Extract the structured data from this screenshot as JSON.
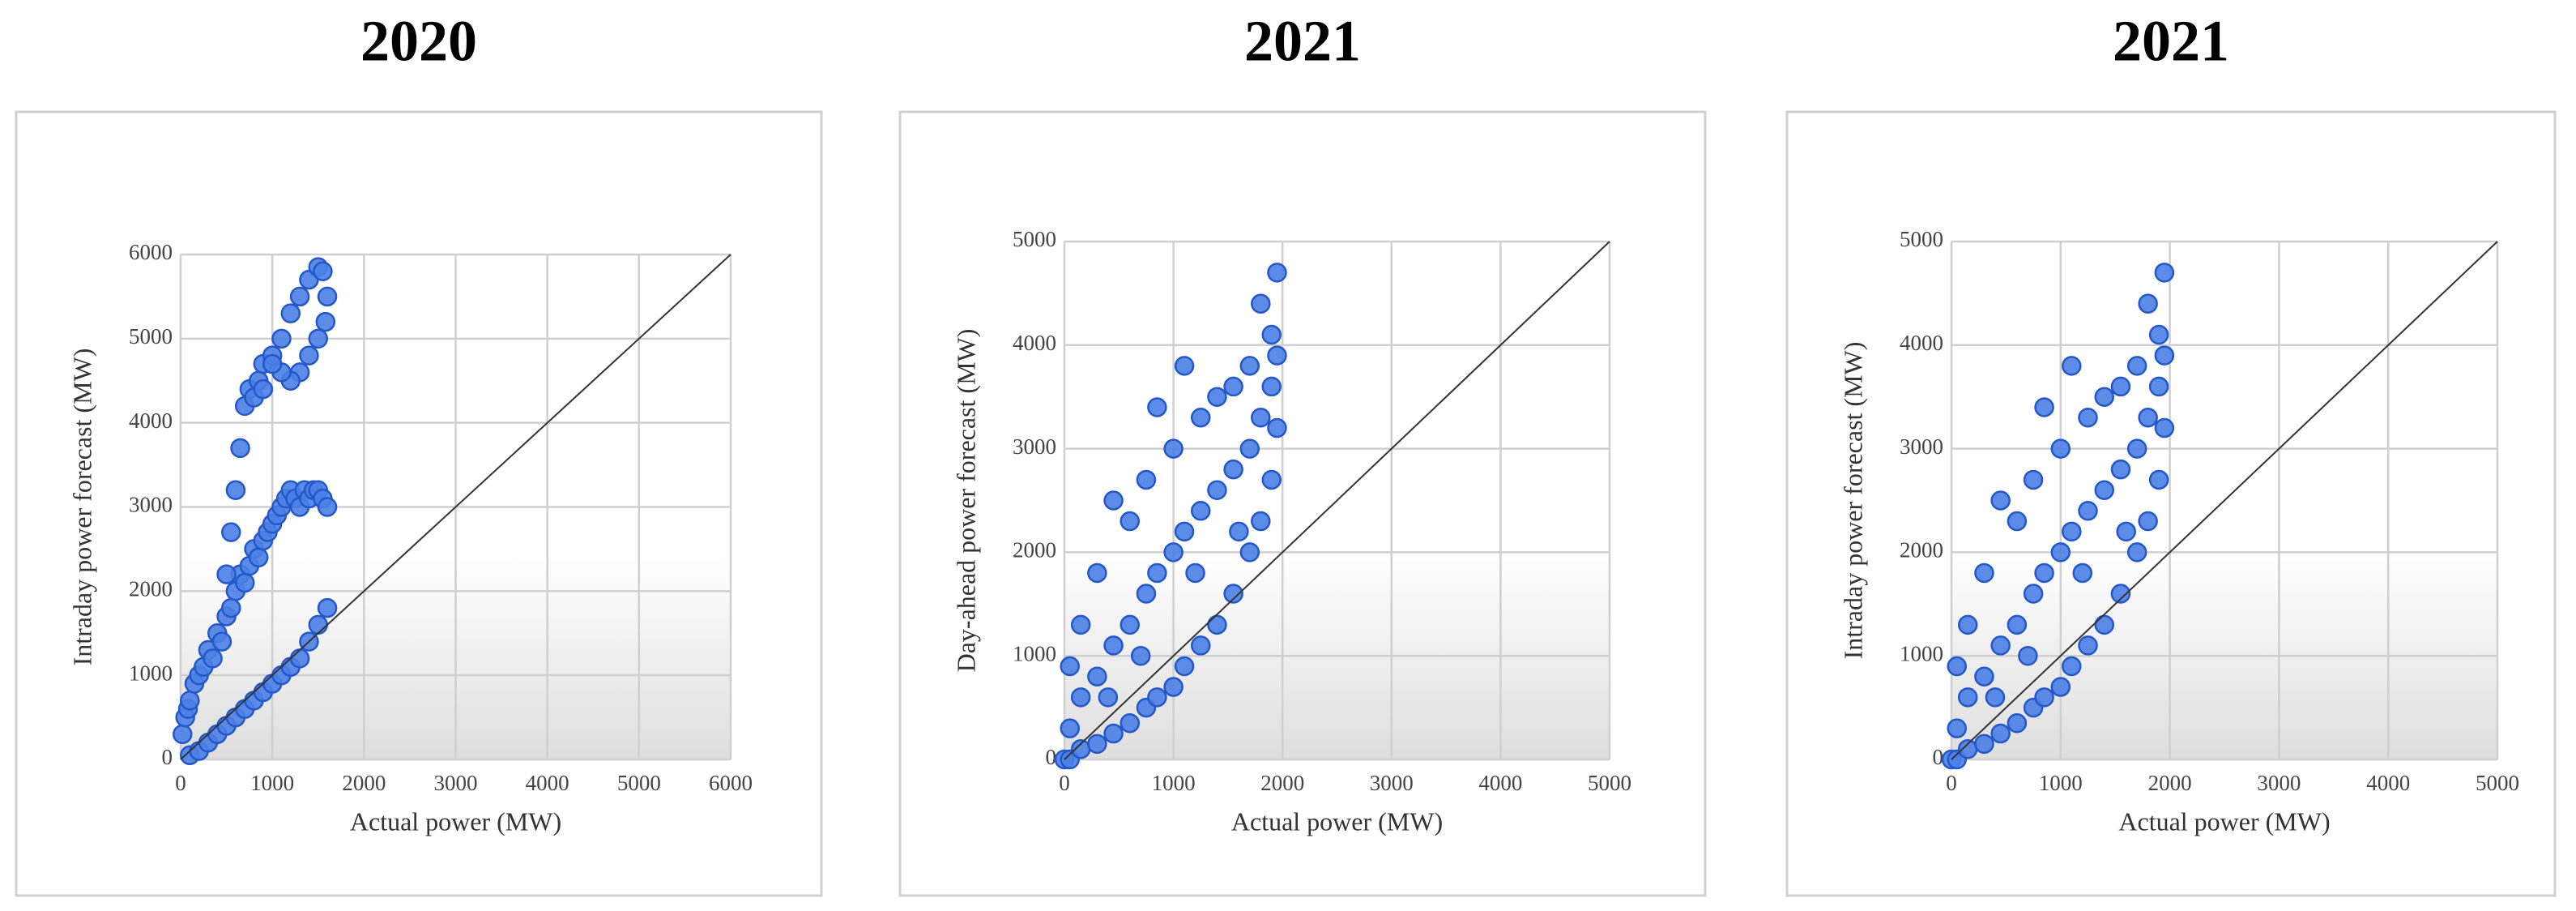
{
  "chart_data": [
    {
      "type": "scatter",
      "title": "2020",
      "xlabel": "Actual power (MW)",
      "ylabel": "Intraday power forecast (MW)",
      "xlim": [
        0,
        6000
      ],
      "ylim": [
        0,
        6000
      ],
      "xticks": [
        0,
        1000,
        2000,
        3000,
        4000,
        5000,
        6000
      ],
      "yticks": [
        0,
        1000,
        2000,
        3000,
        4000,
        5000,
        6000
      ],
      "grid": true,
      "series": [
        {
          "color": "#4a7fe6",
          "x": [
            20,
            50,
            80,
            100,
            150,
            200,
            250,
            300,
            350,
            400,
            450,
            500,
            550,
            600,
            650,
            700,
            750,
            800,
            850,
            900,
            950,
            1000,
            1050,
            1100,
            1150,
            1200,
            1250,
            1300,
            1350,
            1400,
            1450,
            1500,
            1550,
            1600,
            100,
            200,
            300,
            400,
            500,
            600,
            700,
            800,
            900,
            1000,
            1100,
            1200,
            1300,
            1400,
            1500,
            1600,
            500,
            550,
            600,
            650,
            700,
            750,
            800,
            850,
            900,
            1000,
            1100,
            1200,
            1300,
            1400,
            1500,
            1550,
            1600,
            1580,
            1500,
            1400,
            1300,
            1200,
            1100,
            1000,
            900
          ],
          "y": [
            300,
            500,
            600,
            700,
            900,
            1000,
            1100,
            1300,
            1200,
            1500,
            1400,
            1700,
            1800,
            2000,
            2200,
            2100,
            2300,
            2500,
            2400,
            2600,
            2700,
            2800,
            2900,
            3000,
            3100,
            3200,
            3100,
            3000,
            3200,
            3100,
            3200,
            3200,
            3100,
            3000,
            50,
            100,
            200,
            300,
            400,
            500,
            600,
            700,
            800,
            900,
            1000,
            1100,
            1200,
            1400,
            1600,
            1800,
            2200,
            2700,
            3200,
            3700,
            4200,
            4400,
            4300,
            4500,
            4700,
            4800,
            5000,
            5300,
            5500,
            5700,
            5850,
            5800,
            5500,
            5200,
            5000,
            4800,
            4600,
            4500,
            4600,
            4700,
            4400
          ]
        }
      ],
      "reference_line": {
        "x": [
          0,
          6000
        ],
        "y": [
          0,
          6000
        ]
      }
    },
    {
      "type": "scatter",
      "title": "2021",
      "xlabel": "Actual power (MW)",
      "ylabel": "Day-ahead power forecast (MW)",
      "xlim": [
        0,
        5000
      ],
      "ylim": [
        0,
        5000
      ],
      "xticks": [
        0,
        1000,
        2000,
        3000,
        4000,
        5000
      ],
      "yticks": [
        0,
        1000,
        2000,
        3000,
        4000,
        5000
      ],
      "grid": true,
      "series": [
        {
          "color": "#4a7fe6",
          "x": [
            0,
            50,
            50,
            50,
            150,
            150,
            150,
            300,
            300,
            300,
            450,
            450,
            450,
            600,
            600,
            600,
            750,
            750,
            750,
            850,
            850,
            850,
            1000,
            1000,
            1000,
            1100,
            1100,
            1100,
            1250,
            1250,
            1250,
            1400,
            1400,
            1400,
            1550,
            1550,
            1550,
            1700,
            1700,
            1700,
            1800,
            1800,
            1800,
            1900,
            1900,
            1900,
            1950,
            1950,
            1950,
            400,
            700,
            1200,
            1600
          ],
          "y": [
            0,
            0,
            300,
            900,
            100,
            600,
            1300,
            150,
            800,
            1800,
            250,
            1100,
            2500,
            350,
            1300,
            2300,
            500,
            1600,
            2700,
            600,
            1800,
            3400,
            700,
            2000,
            3000,
            900,
            2200,
            3800,
            1100,
            2400,
            3300,
            1300,
            2600,
            3500,
            1600,
            2800,
            3600,
            2000,
            3000,
            3800,
            2300,
            3300,
            4400,
            2700,
            3600,
            4100,
            3200,
            3900,
            4700,
            600,
            1000,
            1800,
            2200
          ]
        }
      ],
      "reference_line": {
        "x": [
          0,
          5000
        ],
        "y": [
          0,
          5000
        ]
      }
    },
    {
      "type": "scatter",
      "title": "2021",
      "xlabel": "Actual power (MW)",
      "ylabel": "Intraday power forecast (MW)",
      "xlim": [
        0,
        5000
      ],
      "ylim": [
        0,
        5000
      ],
      "xticks": [
        0,
        1000,
        2000,
        3000,
        4000,
        5000
      ],
      "yticks": [
        0,
        1000,
        2000,
        3000,
        4000,
        5000
      ],
      "grid": true,
      "series": [
        {
          "color": "#4a7fe6",
          "x": [
            0,
            50,
            50,
            50,
            150,
            150,
            150,
            300,
            300,
            300,
            450,
            450,
            450,
            600,
            600,
            600,
            750,
            750,
            750,
            850,
            850,
            850,
            1000,
            1000,
            1000,
            1100,
            1100,
            1100,
            1250,
            1250,
            1250,
            1400,
            1400,
            1400,
            1550,
            1550,
            1550,
            1700,
            1700,
            1700,
            1800,
            1800,
            1800,
            1900,
            1900,
            1900,
            1950,
            1950,
            1950,
            400,
            700,
            1200,
            1600
          ],
          "y": [
            0,
            0,
            300,
            900,
            100,
            600,
            1300,
            150,
            800,
            1800,
            250,
            1100,
            2500,
            350,
            1300,
            2300,
            500,
            1600,
            2700,
            600,
            1800,
            3400,
            700,
            2000,
            3000,
            900,
            2200,
            3800,
            1100,
            2400,
            3300,
            1300,
            2600,
            3500,
            1600,
            2800,
            3600,
            2000,
            3000,
            3800,
            2300,
            3300,
            4400,
            2700,
            3600,
            4100,
            3200,
            3900,
            4700,
            600,
            1000,
            1800,
            2200
          ]
        }
      ],
      "reference_line": {
        "x": [
          0,
          5000
        ],
        "y": [
          0,
          5000
        ]
      }
    }
  ]
}
